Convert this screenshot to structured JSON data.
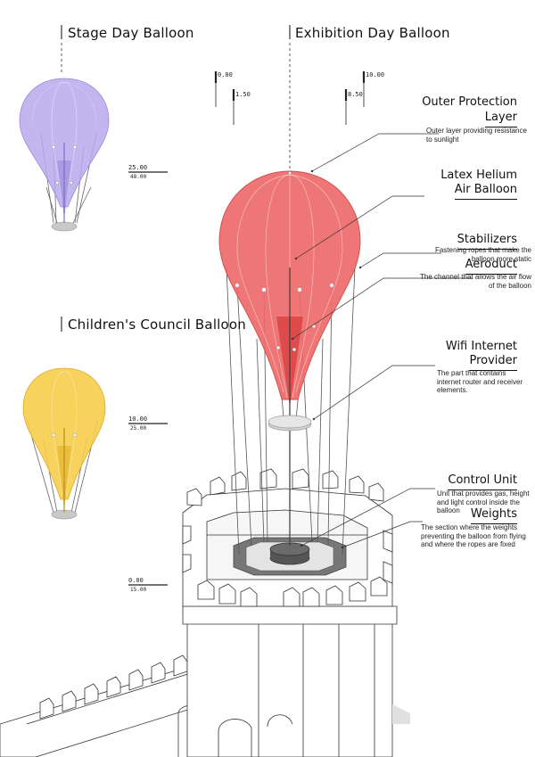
{
  "titles": {
    "stage": "Stage Day Balloon",
    "exhibition": "Exhibition Day Balloon",
    "children": "Children's Council Balloon"
  },
  "levels": {
    "stage": {
      "top": "25.00",
      "bottom": "48.00"
    },
    "children": {
      "top": "10.00",
      "bottom": "25.00"
    },
    "ground": {
      "top": "0.00",
      "bottom": "15.00"
    },
    "exhibition_a": {
      "top": "0.00",
      "bottom": "1.50"
    },
    "exhibition_b": {
      "top": "10.00",
      "bottom": "8.50"
    }
  },
  "labels": {
    "outer": {
      "title1": "Outer Protection",
      "title2": "Layer",
      "desc": "Outer layer providing resistance to sunlight"
    },
    "latex": {
      "title1": "Latex Helium",
      "title2": "Air Balloon"
    },
    "stabilizers": {
      "title": "Stabilizers",
      "desc": "Fastening ropes that make the balloon more static"
    },
    "aeroduct": {
      "title": "Aeroduct",
      "desc": "The channel that allows the air flow of the balloon"
    },
    "wifi": {
      "title1": "Wifi Internet",
      "title2": "Provider",
      "desc": "The part that contains internet router and receiver elements."
    },
    "control": {
      "title": "Control Unit",
      "desc": "Unit that provides gas, height and light control inside the balloon"
    },
    "weights": {
      "title": "Weights",
      "desc": "The section where the weights preventing the balloon from flying and where the ropes are fixed"
    }
  },
  "colors": {
    "stage_balloon": "#b9a8ec",
    "exhibition_balloon": "#ee6a6a",
    "children_balloon": "#f6cd4a",
    "lines": "#222222"
  }
}
